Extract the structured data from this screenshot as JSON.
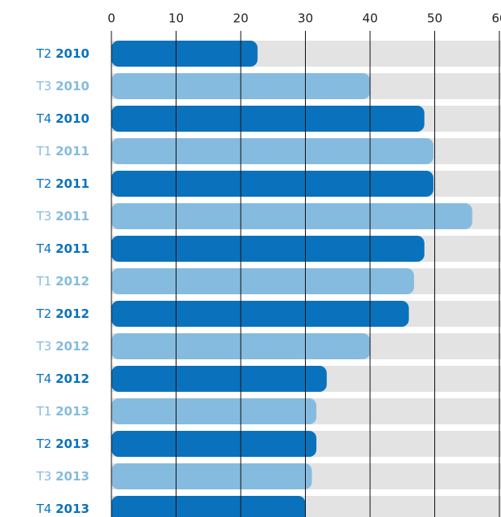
{
  "chart_data": {
    "type": "bar",
    "orientation": "horizontal",
    "categories": [
      "T2 2010",
      "T3 2010",
      "T4 2010",
      "T1 2011",
      "T2 2011",
      "T3 2011",
      "T4 2011",
      "T1 2012",
      "T2 2012",
      "T3 2012",
      "T4 2012",
      "T1 2013",
      "T2 2013",
      "T3 2013",
      "T4 2013"
    ],
    "values": [
      22.6,
      40,
      48.4,
      49.8,
      49.8,
      55.8,
      48.4,
      46.8,
      46,
      40,
      33.3,
      31.7,
      31.7,
      31,
      30
    ],
    "colors": [
      "#0a72bc",
      "#85bbdf",
      "#0a72bc",
      "#85bbdf",
      "#0a72bc",
      "#85bbdf",
      "#0a72bc",
      "#85bbdf",
      "#0a72bc",
      "#85bbdf",
      "#0a72bc",
      "#85bbdf",
      "#0a72bc",
      "#85bbdf",
      "#0a72bc"
    ],
    "xlim": [
      0,
      60
    ],
    "xticks": [
      0,
      10,
      20,
      30,
      40,
      50,
      60
    ],
    "grid": true
  }
}
